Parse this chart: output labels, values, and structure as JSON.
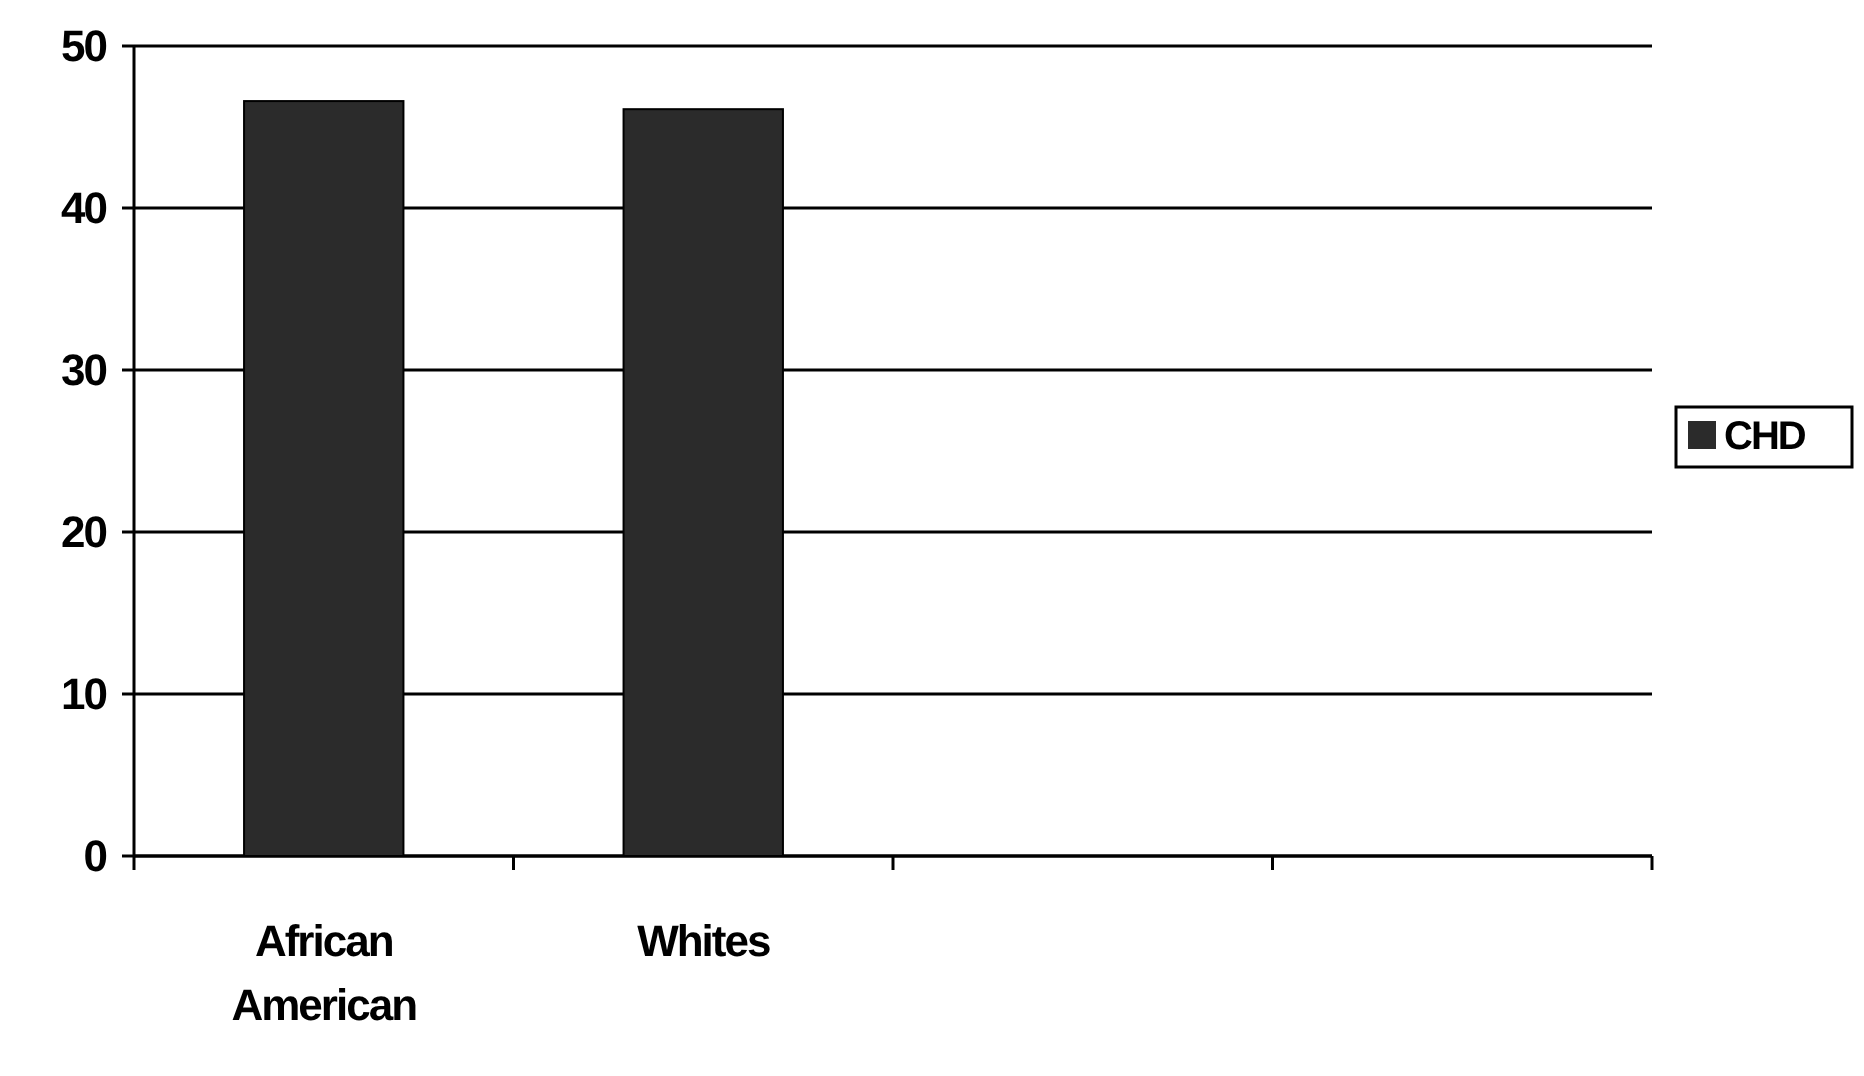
{
  "chart_data": {
    "type": "bar",
    "categories": [
      "African American",
      "Whites",
      null,
      null
    ],
    "series": [
      {
        "name": "CHD",
        "color": "#2b2b2b",
        "values": [
          46.6,
          46.1,
          null,
          null
        ]
      }
    ],
    "ylim": [
      0,
      50
    ],
    "yticks": [
      0,
      10,
      20,
      30,
      40,
      50
    ],
    "grid": "y",
    "legend": "right"
  }
}
